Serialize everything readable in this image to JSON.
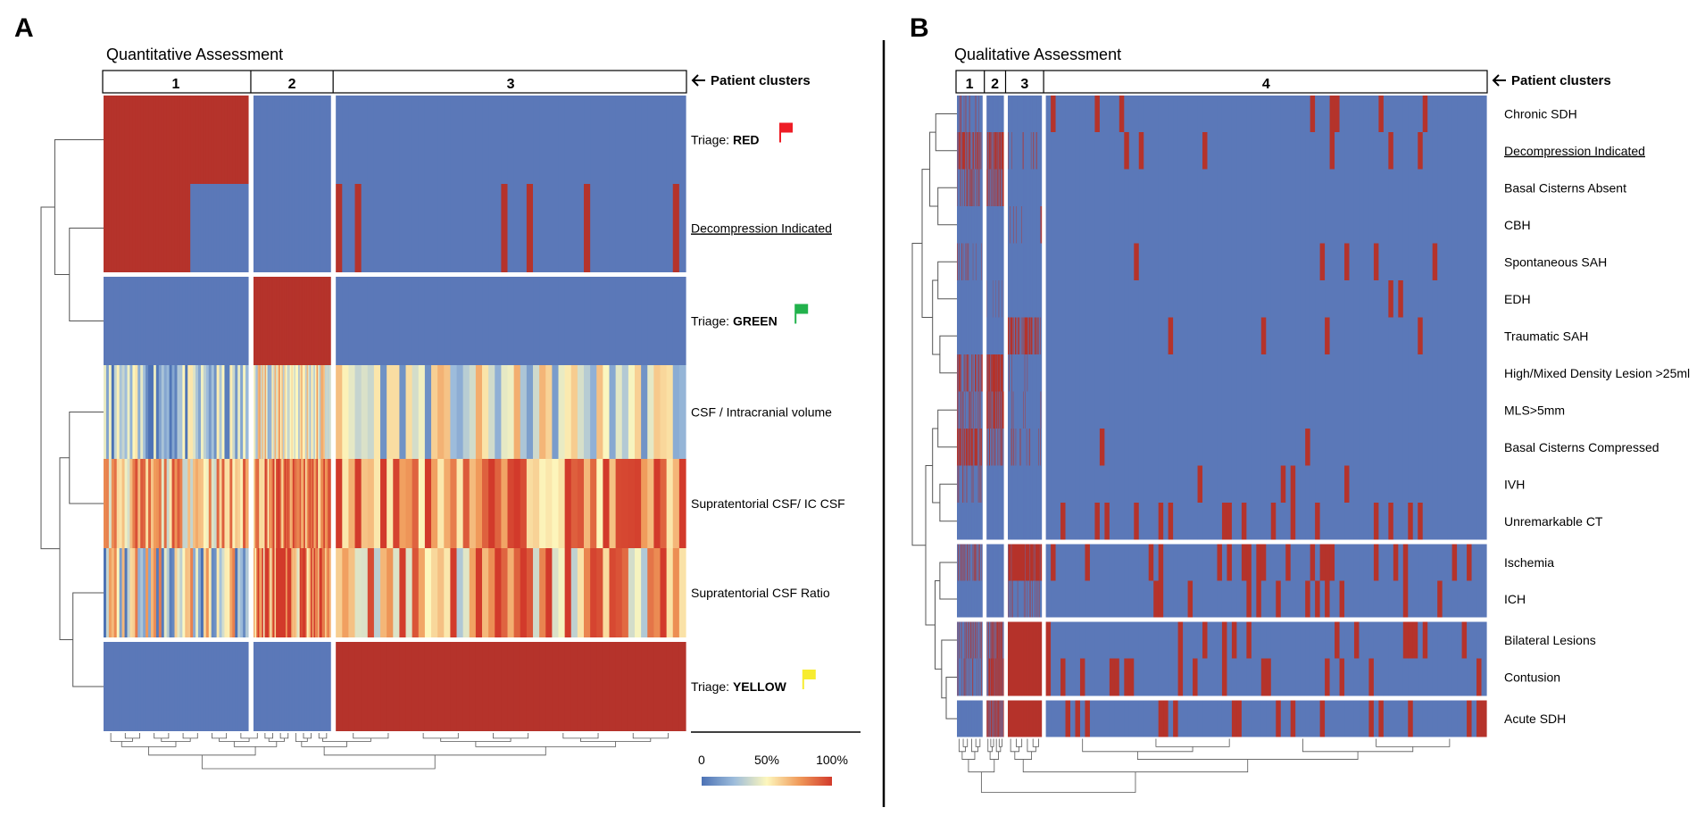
{
  "colors": {
    "red": "#b5332b",
    "blue": "#5b78b8",
    "flag_red": "#ee1c25",
    "flag_green": "#22b24c",
    "flag_yellow": "#f7ec30",
    "gradient": [
      "#4c72b5",
      "#9dbcdb",
      "#fdf7bd",
      "#f09a5a",
      "#d23a2b"
    ]
  },
  "chart_data": [
    {
      "type": "heatmap",
      "panel": "A",
      "title": "Quantitative Assessment",
      "cluster_header": "Patient clusters",
      "clusters": [
        {
          "label": "1",
          "patients": 62
        },
        {
          "label": "2",
          "patients": 33
        },
        {
          "label": "3",
          "patients": 150
        }
      ],
      "row_groups": [
        {
          "rows": [
            {
              "label_prefix": "Triage:",
              "label_strong": "RED",
              "flag": "red",
              "summary": {
                "1": 1.0,
                "2": 0.0,
                "3": 0.0
              }
            },
            {
              "label": "Decompression Indicated",
              "underline": true,
              "summary": {
                "1": 0.6,
                "2": 0.0,
                "3": 0.08
              }
            }
          ]
        },
        {
          "rows": [
            {
              "label_prefix": "Triage:",
              "label_strong": "GREEN",
              "flag": "green",
              "summary": {
                "1": 0.0,
                "2": 1.0,
                "3": 0.0
              }
            },
            {
              "label": "CSF / Intracranial volume",
              "continuous": true,
              "scale": "low",
              "summary": {
                "1": 0.25,
                "2": 0.5,
                "3": 0.4
              }
            },
            {
              "label": "Supratentorial CSF/ IC CSF",
              "continuous": true,
              "scale": "high",
              "summary": {
                "1": 0.65,
                "2": 0.8,
                "3": 0.8
              }
            },
            {
              "label": "Supratentorial CSF Ratio",
              "continuous": true,
              "scale": "mixed",
              "summary": {
                "1": 0.4,
                "2": 0.85,
                "3": 0.7
              }
            }
          ]
        },
        {
          "rows": [
            {
              "label_prefix": "Triage:",
              "label_strong": "YELLOW",
              "flag": "yellow",
              "summary": {
                "1": 0.0,
                "2": 0.0,
                "3": 1.0
              }
            }
          ]
        }
      ],
      "colorbar": {
        "ticks": [
          "0",
          "50%",
          "100%"
        ],
        "range": [
          0,
          100
        ]
      }
    },
    {
      "type": "heatmap",
      "panel": "B",
      "title": "Qualitative Assessment",
      "cluster_header": "Patient clusters",
      "clusters": [
        {
          "label": "1",
          "patients": 12
        },
        {
          "label": "2",
          "patients": 8
        },
        {
          "label": "3",
          "patients": 16
        },
        {
          "label": "4",
          "patients": 210
        }
      ],
      "row_groups": [
        {
          "rows": [
            {
              "label": "Chronic SDH",
              "summary": {
                "1": 0.2,
                "2": 0.0,
                "3": 0.0,
                "4": 0.08
              }
            },
            {
              "label": "Decompression Indicated",
              "underline": true,
              "summary": {
                "1": 0.6,
                "2": 0.7,
                "3": 0.1,
                "4": 0.06
              }
            },
            {
              "label": "Basal Cisterns Absent",
              "summary": {
                "1": 0.3,
                "2": 0.5,
                "3": 0.0,
                "4": 0.0
              }
            },
            {
              "label": "CBH",
              "summary": {
                "1": 0.0,
                "2": 0.0,
                "3": 0.05,
                "4": 0.02
              }
            },
            {
              "label": "Spontaneous SAH",
              "summary": {
                "1": 0.1,
                "2": 0.0,
                "3": 0.0,
                "4": 0.04
              }
            },
            {
              "label": "EDH",
              "summary": {
                "1": 0.0,
                "2": 0.1,
                "3": 0.0,
                "4": 0.03
              }
            },
            {
              "label": "Traumatic SAH",
              "summary": {
                "1": 0.0,
                "2": 0.0,
                "3": 0.6,
                "4": 0.04
              }
            },
            {
              "label": "High/Mixed Density Lesion >25ml",
              "summary": {
                "1": 0.4,
                "2": 0.8,
                "3": 0.05,
                "4": 0.01
              }
            },
            {
              "label": "MLS>5mm",
              "summary": {
                "1": 0.3,
                "2": 0.6,
                "3": 0.05,
                "4": 0.01
              }
            },
            {
              "label": "Basal Cisterns Compressed",
              "summary": {
                "1": 0.7,
                "2": 0.4,
                "3": 0.05,
                "4": 0.03
              }
            },
            {
              "label": "IVH",
              "summary": {
                "1": 0.2,
                "2": 0.0,
                "3": 0.0,
                "4": 0.03
              }
            },
            {
              "label": "Unremarkable CT",
              "summary": {
                "1": 0.0,
                "2": 0.0,
                "3": 0.0,
                "4": 0.15
              }
            }
          ]
        },
        {
          "rows": [
            {
              "label": "Ischemia",
              "summary": {
                "1": 0.3,
                "2": 0.0,
                "3": 0.9,
                "4": 0.15
              }
            },
            {
              "label": "ICH",
              "summary": {
                "1": 0.0,
                "2": 0.0,
                "3": 0.2,
                "4": 0.12
              }
            }
          ]
        },
        {
          "rows": [
            {
              "label": "Bilateral Lesions",
              "summary": {
                "1": 0.4,
                "2": 0.6,
                "3": 1.0,
                "4": 0.2
              }
            },
            {
              "label": "Contusion",
              "summary": {
                "1": 0.3,
                "2": 0.7,
                "3": 1.0,
                "4": 0.18
              }
            }
          ]
        },
        {
          "rows": [
            {
              "label": "Acute SDH",
              "summary": {
                "1": 0.0,
                "2": 0.7,
                "3": 1.0,
                "4": 0.2
              }
            }
          ]
        }
      ]
    }
  ],
  "panels": {
    "a_letter": "A",
    "b_letter": "B"
  }
}
